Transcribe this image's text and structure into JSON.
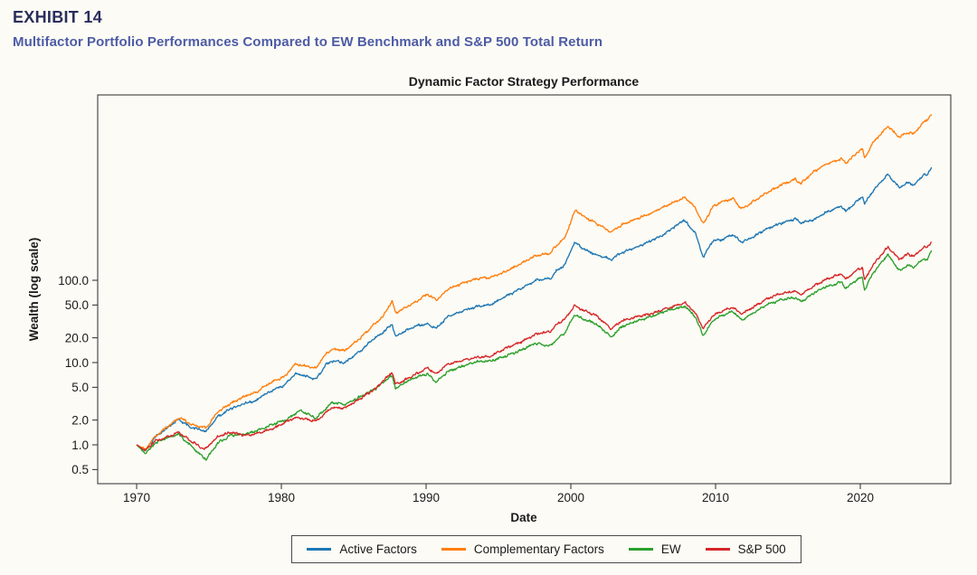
{
  "header": {
    "exhibit_label": "EXHIBIT 14",
    "subtitle": "Multifactor Portfolio Performances Compared to EW Benchmark and S&P 500 Total Return"
  },
  "colors": {
    "exhibit_label": "#2a2e5c",
    "subtitle": "#4d5ba6",
    "background": "#fcfbf5",
    "axis": "#3c3c3c"
  },
  "chart_data": {
    "type": "line",
    "title": "Dynamic Factor Strategy Performance",
    "xlabel": "Date",
    "ylabel": "Wealth (log scale)",
    "yscale": "log",
    "grid": false,
    "legend_position": "bottom",
    "x_range": [
      1967.31,
      2026.25
    ],
    "ylim": [
      0.337,
      17900
    ],
    "x_ticks": [
      1970,
      1980,
      1990,
      2000,
      2010,
      2020
    ],
    "x_tick_labels": [
      "1970",
      "1980",
      "1990",
      "2000",
      "2010",
      "2020"
    ],
    "y_ticks": [
      0.5,
      1.0,
      2.0,
      5.0,
      10.0,
      20.0,
      50.0,
      100.0
    ],
    "y_tick_labels": [
      "0.5",
      "1.0",
      "2.0",
      "5.0",
      "10.0",
      "20.0",
      "50.0",
      "100.0"
    ],
    "series": [
      {
        "name": "Active Factors",
        "color": "#1f77b4",
        "anchors": [
          [
            1970.0,
            1.0
          ],
          [
            1970.6,
            0.85
          ],
          [
            1971.3,
            1.25
          ],
          [
            1972.0,
            1.55
          ],
          [
            1972.9,
            2.05
          ],
          [
            1973.7,
            1.65
          ],
          [
            1974.8,
            1.45
          ],
          [
            1975.6,
            2.2
          ],
          [
            1976.5,
            2.75
          ],
          [
            1977.5,
            3.2
          ],
          [
            1978.35,
            3.5
          ],
          [
            1978.7,
            4.0
          ],
          [
            1979.5,
            4.7
          ],
          [
            1980.2,
            5.3
          ],
          [
            1980.95,
            7.3
          ],
          [
            1981.5,
            7.0
          ],
          [
            1982.4,
            6.3
          ],
          [
            1983.1,
            9.5
          ],
          [
            1983.6,
            10.5
          ],
          [
            1984.4,
            10.0
          ],
          [
            1985.5,
            14.0
          ],
          [
            1986.3,
            19.0
          ],
          [
            1987.0,
            23.0
          ],
          [
            1987.65,
            29.5
          ],
          [
            1987.9,
            20.5
          ],
          [
            1988.5,
            24.0
          ],
          [
            1989.5,
            28.5
          ],
          [
            1990.1,
            29.5
          ],
          [
            1990.7,
            26.0
          ],
          [
            1991.5,
            36.0
          ],
          [
            1992.5,
            42.0
          ],
          [
            1993.5,
            48.0
          ],
          [
            1994.4,
            50.0
          ],
          [
            1995.5,
            64.0
          ],
          [
            1996.5,
            78.0
          ],
          [
            1997.6,
            100.0
          ],
          [
            1998.6,
            105.0
          ],
          [
            1999.0,
            130.0
          ],
          [
            1999.6,
            155.0
          ],
          [
            2000.25,
            290.0
          ],
          [
            2001.0,
            235.0
          ],
          [
            2001.7,
            205.0
          ],
          [
            2002.8,
            180.0
          ],
          [
            2003.5,
            215.0
          ],
          [
            2004.5,
            250.0
          ],
          [
            2005.5,
            300.0
          ],
          [
            2006.5,
            365.0
          ],
          [
            2007.8,
            540.0
          ],
          [
            2008.6,
            380.0
          ],
          [
            2009.15,
            190.0
          ],
          [
            2009.8,
            300.0
          ],
          [
            2010.4,
            310.0
          ],
          [
            2011.2,
            360.0
          ],
          [
            2011.8,
            290.0
          ],
          [
            2012.5,
            330.0
          ],
          [
            2013.5,
            420.0
          ],
          [
            2014.5,
            490.0
          ],
          [
            2015.5,
            560.0
          ],
          [
            2015.9,
            500.0
          ],
          [
            2016.8,
            545.0
          ],
          [
            2017.5,
            650.0
          ],
          [
            2018.7,
            800.0
          ],
          [
            2019.0,
            690.0
          ],
          [
            2019.9,
            950.0
          ],
          [
            2020.15,
            1050.0
          ],
          [
            2020.3,
            840.0
          ],
          [
            2020.9,
            1250.0
          ],
          [
            2021.9,
            1930.0
          ],
          [
            2022.7,
            1330.0
          ],
          [
            2023.3,
            1550.0
          ],
          [
            2023.7,
            1430.0
          ],
          [
            2024.4,
            1950.0
          ],
          [
            2024.6,
            1850.0
          ],
          [
            2024.92,
            2360.0
          ]
        ]
      },
      {
        "name": "Complementary Factors",
        "color": "#ff7f0e",
        "anchors": [
          [
            1970.0,
            1.0
          ],
          [
            1970.6,
            0.88
          ],
          [
            1971.3,
            1.28
          ],
          [
            1972.0,
            1.6
          ],
          [
            1973.0,
            2.15
          ],
          [
            1973.7,
            1.8
          ],
          [
            1974.8,
            1.6
          ],
          [
            1975.6,
            2.5
          ],
          [
            1976.5,
            3.2
          ],
          [
            1977.5,
            3.9
          ],
          [
            1978.35,
            4.4
          ],
          [
            1978.7,
            5.0
          ],
          [
            1979.5,
            6.0
          ],
          [
            1980.2,
            6.7
          ],
          [
            1980.95,
            9.6
          ],
          [
            1981.5,
            9.2
          ],
          [
            1982.4,
            8.6
          ],
          [
            1983.1,
            13.0
          ],
          [
            1983.6,
            14.5
          ],
          [
            1984.4,
            14.0
          ],
          [
            1985.5,
            20.0
          ],
          [
            1986.3,
            28.0
          ],
          [
            1987.0,
            36.0
          ],
          [
            1987.65,
            56.0
          ],
          [
            1987.9,
            40.0
          ],
          [
            1988.5,
            46.0
          ],
          [
            1989.5,
            58.0
          ],
          [
            1990.1,
            68.0
          ],
          [
            1990.7,
            57.0
          ],
          [
            1991.5,
            78.0
          ],
          [
            1992.5,
            92.0
          ],
          [
            1993.5,
            105.0
          ],
          [
            1994.4,
            108.0
          ],
          [
            1995.5,
            128.0
          ],
          [
            1996.5,
            158.0
          ],
          [
            1997.6,
            200.0
          ],
          [
            1998.6,
            215.0
          ],
          [
            1999.0,
            265.0
          ],
          [
            1999.6,
            330.0
          ],
          [
            2000.3,
            720.0
          ],
          [
            2001.0,
            580.0
          ],
          [
            2001.7,
            500.0
          ],
          [
            2002.8,
            385.0
          ],
          [
            2003.5,
            470.0
          ],
          [
            2004.5,
            555.0
          ],
          [
            2005.5,
            650.0
          ],
          [
            2006.5,
            790.0
          ],
          [
            2007.9,
            1020.0
          ],
          [
            2008.6,
            760.0
          ],
          [
            2009.15,
            480.0
          ],
          [
            2009.8,
            780.0
          ],
          [
            2010.4,
            900.0
          ],
          [
            2011.2,
            980.0
          ],
          [
            2011.8,
            740.0
          ],
          [
            2012.5,
            880.0
          ],
          [
            2013.5,
            1150.0
          ],
          [
            2014.5,
            1430.0
          ],
          [
            2015.5,
            1700.0
          ],
          [
            2015.9,
            1500.0
          ],
          [
            2016.8,
            2100.0
          ],
          [
            2017.5,
            2500.0
          ],
          [
            2018.7,
            3000.0
          ],
          [
            2019.0,
            2650.0
          ],
          [
            2019.9,
            3700.0
          ],
          [
            2020.15,
            3950.0
          ],
          [
            2020.3,
            3050.0
          ],
          [
            2020.9,
            4800.0
          ],
          [
            2021.9,
            7400.0
          ],
          [
            2022.7,
            5500.0
          ],
          [
            2023.3,
            6300.0
          ],
          [
            2023.7,
            6000.0
          ],
          [
            2024.4,
            8400.0
          ],
          [
            2024.6,
            8800.0
          ],
          [
            2024.92,
            10300.0
          ]
        ]
      },
      {
        "name": "EW",
        "color": "#2ca02c",
        "anchors": [
          [
            1970.0,
            1.0
          ],
          [
            1970.6,
            0.78
          ],
          [
            1971.3,
            1.05
          ],
          [
            1972.0,
            1.2
          ],
          [
            1972.9,
            1.35
          ],
          [
            1973.8,
            0.95
          ],
          [
            1974.8,
            0.66
          ],
          [
            1975.6,
            1.05
          ],
          [
            1976.5,
            1.3
          ],
          [
            1977.5,
            1.35
          ],
          [
            1978.4,
            1.5
          ],
          [
            1979.5,
            1.8
          ],
          [
            1980.3,
            2.0
          ],
          [
            1981.3,
            2.65
          ],
          [
            1982.4,
            2.1
          ],
          [
            1983.5,
            3.3
          ],
          [
            1984.4,
            3.1
          ],
          [
            1985.5,
            3.9
          ],
          [
            1986.5,
            4.8
          ],
          [
            1987.65,
            7.0
          ],
          [
            1987.9,
            4.8
          ],
          [
            1988.5,
            5.7
          ],
          [
            1989.5,
            6.8
          ],
          [
            1990.1,
            7.3
          ],
          [
            1990.7,
            5.8
          ],
          [
            1991.5,
            7.8
          ],
          [
            1992.5,
            9.0
          ],
          [
            1993.5,
            10.3
          ],
          [
            1994.4,
            10.4
          ],
          [
            1995.5,
            12.0
          ],
          [
            1996.5,
            14.0
          ],
          [
            1997.5,
            17.0
          ],
          [
            1998.6,
            16.0
          ],
          [
            1999.0,
            19.0
          ],
          [
            1999.6,
            23.0
          ],
          [
            2000.25,
            38.0
          ],
          [
            2001.0,
            33.0
          ],
          [
            2001.7,
            30.0
          ],
          [
            2002.8,
            20.5
          ],
          [
            2003.5,
            27.0
          ],
          [
            2004.5,
            32.0
          ],
          [
            2005.5,
            36.0
          ],
          [
            2006.5,
            42.0
          ],
          [
            2007.9,
            48.0
          ],
          [
            2008.6,
            36.0
          ],
          [
            2009.15,
            21.0
          ],
          [
            2009.8,
            32.0
          ],
          [
            2010.4,
            37.0
          ],
          [
            2011.2,
            42.0
          ],
          [
            2011.8,
            33.0
          ],
          [
            2012.5,
            39.0
          ],
          [
            2013.5,
            50.0
          ],
          [
            2014.5,
            58.0
          ],
          [
            2015.5,
            62.0
          ],
          [
            2015.9,
            55.0
          ],
          [
            2016.8,
            70.0
          ],
          [
            2017.5,
            82.0
          ],
          [
            2018.7,
            95.0
          ],
          [
            2019.0,
            80.0
          ],
          [
            2019.9,
            105.0
          ],
          [
            2020.15,
            108.0
          ],
          [
            2020.3,
            76.0
          ],
          [
            2020.9,
            125.0
          ],
          [
            2021.9,
            205.0
          ],
          [
            2022.7,
            130.0
          ],
          [
            2023.3,
            152.0
          ],
          [
            2023.7,
            143.0
          ],
          [
            2024.4,
            185.0
          ],
          [
            2024.6,
            175.0
          ],
          [
            2024.92,
            228.0
          ]
        ]
      },
      {
        "name": "S&P 500",
        "color": "#d62728",
        "anchors": [
          [
            1970.0,
            1.0
          ],
          [
            1970.6,
            0.85
          ],
          [
            1971.3,
            1.12
          ],
          [
            1972.0,
            1.22
          ],
          [
            1972.9,
            1.42
          ],
          [
            1973.8,
            1.1
          ],
          [
            1974.7,
            0.88
          ],
          [
            1975.6,
            1.25
          ],
          [
            1976.5,
            1.42
          ],
          [
            1977.5,
            1.3
          ],
          [
            1978.4,
            1.38
          ],
          [
            1979.5,
            1.6
          ],
          [
            1980.3,
            1.9
          ],
          [
            1981.0,
            2.15
          ],
          [
            1982.4,
            1.95
          ],
          [
            1983.5,
            2.85
          ],
          [
            1984.4,
            2.8
          ],
          [
            1985.5,
            3.7
          ],
          [
            1986.5,
            4.8
          ],
          [
            1987.65,
            7.6
          ],
          [
            1987.9,
            5.4
          ],
          [
            1988.5,
            6.1
          ],
          [
            1989.5,
            7.5
          ],
          [
            1990.1,
            8.6
          ],
          [
            1990.7,
            7.3
          ],
          [
            1991.5,
            9.6
          ],
          [
            1992.5,
            10.6
          ],
          [
            1993.5,
            11.6
          ],
          [
            1994.4,
            11.8
          ],
          [
            1995.5,
            15.0
          ],
          [
            1996.5,
            17.5
          ],
          [
            1997.5,
            22.0
          ],
          [
            1998.6,
            24.0
          ],
          [
            1999.0,
            29.0
          ],
          [
            1999.6,
            34.0
          ],
          [
            2000.25,
            49.0
          ],
          [
            2001.0,
            42.0
          ],
          [
            2001.7,
            38.0
          ],
          [
            2002.8,
            25.5
          ],
          [
            2003.5,
            32.0
          ],
          [
            2004.5,
            36.0
          ],
          [
            2005.5,
            39.0
          ],
          [
            2006.5,
            45.0
          ],
          [
            2007.9,
            53.0
          ],
          [
            2008.6,
            40.0
          ],
          [
            2009.15,
            26.0
          ],
          [
            2009.8,
            37.0
          ],
          [
            2010.4,
            42.0
          ],
          [
            2011.2,
            47.0
          ],
          [
            2011.8,
            39.0
          ],
          [
            2012.5,
            46.0
          ],
          [
            2013.5,
            59.0
          ],
          [
            2014.5,
            69.0
          ],
          [
            2015.5,
            74.0
          ],
          [
            2015.9,
            67.0
          ],
          [
            2016.8,
            85.0
          ],
          [
            2017.5,
            100.0
          ],
          [
            2018.7,
            120.0
          ],
          [
            2019.0,
            103.0
          ],
          [
            2019.9,
            138.0
          ],
          [
            2020.15,
            142.0
          ],
          [
            2020.3,
            101.0
          ],
          [
            2020.9,
            155.0
          ],
          [
            2021.9,
            255.0
          ],
          [
            2022.7,
            180.0
          ],
          [
            2023.3,
            208.0
          ],
          [
            2023.7,
            196.0
          ],
          [
            2024.4,
            255.0
          ],
          [
            2024.6,
            248.0
          ],
          [
            2024.92,
            295.0
          ]
        ]
      }
    ]
  }
}
